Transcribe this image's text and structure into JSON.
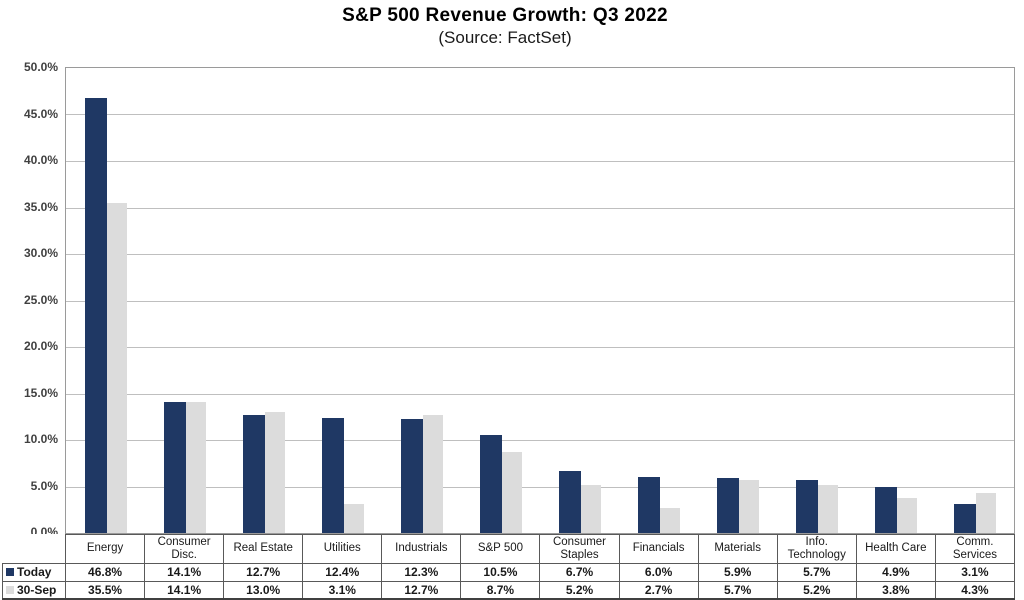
{
  "chart_data": {
    "type": "bar",
    "title": "S&P 500 Revenue Growth: Q3 2022",
    "subtitle": "(Source: FactSet)",
    "categories": [
      "Energy",
      "Consumer Disc.",
      "Real Estate",
      "Utilities",
      "Industrials",
      "S&P 500",
      "Consumer Staples",
      "Financials",
      "Materials",
      "Info. Technology",
      "Health Care",
      "Comm. Services"
    ],
    "series": [
      {
        "name": "Today",
        "color": "#1f3864",
        "values": [
          46.8,
          14.1,
          12.7,
          12.4,
          12.3,
          10.5,
          6.7,
          6.0,
          5.9,
          5.7,
          4.9,
          3.1
        ]
      },
      {
        "name": "30-Sep",
        "color": "#dcdcdc",
        "values": [
          35.5,
          14.1,
          13.0,
          3.1,
          12.7,
          8.7,
          5.2,
          2.7,
          5.7,
          5.2,
          3.8,
          4.3
        ]
      }
    ],
    "xlabel": "",
    "ylabel": "",
    "ylim": [
      0,
      50
    ],
    "ytick_step": 5,
    "ytick_labels": [
      "50.0%",
      "45.0%",
      "40.0%",
      "35.0%",
      "30.0%",
      "25.0%",
      "20.0%",
      "15.0%",
      "10.0%",
      "5.0%",
      "0.0%"
    ],
    "grid": true,
    "legend_position": "table-left-column",
    "value_suffix": "%"
  },
  "colors": {
    "bar_today": "#1f3864",
    "bar_30sep": "#dcdcdc",
    "gridline": "#bfbfbf",
    "plot_border": "#9a9a9a",
    "table_border": "#595959"
  }
}
